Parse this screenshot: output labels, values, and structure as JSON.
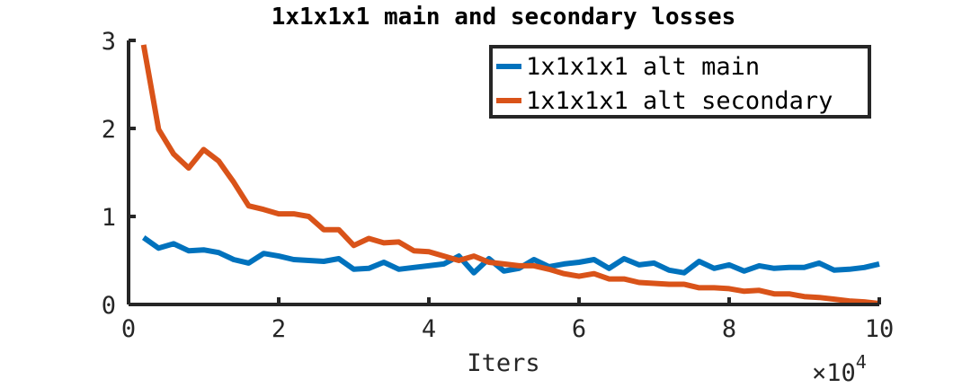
{
  "chart_data": {
    "type": "line",
    "title": "1x1x1x1 main and secondary losses",
    "xlabel": "Iters",
    "ylabel": "",
    "x_exponent_label": "×10",
    "x_exponent_power": "4",
    "xlim": [
      0,
      10
    ],
    "ylim": [
      0,
      3
    ],
    "xticks": [
      0,
      2,
      4,
      6,
      8,
      10
    ],
    "xtick_labels": [
      "0",
      "2",
      "4",
      "6",
      "8",
      "10"
    ],
    "yticks": [
      0,
      1,
      2,
      3
    ],
    "ytick_labels": [
      "0",
      "1",
      "2",
      "3"
    ],
    "grid": false,
    "legend_position": "top-right",
    "x": [
      0.2,
      0.4,
      0.6,
      0.8,
      1.0,
      1.2,
      1.4,
      1.6,
      1.8,
      2.0,
      2.2,
      2.4,
      2.6,
      2.8,
      3.0,
      3.2,
      3.4,
      3.6,
      3.8,
      4.0,
      4.2,
      4.4,
      4.6,
      4.8,
      5.0,
      5.2,
      5.4,
      5.6,
      5.8,
      6.0,
      6.2,
      6.4,
      6.6,
      6.8,
      7.0,
      7.2,
      7.4,
      7.6,
      7.8,
      8.0,
      8.2,
      8.4,
      8.6,
      8.8,
      9.0,
      9.2,
      9.4,
      9.6,
      9.8,
      10.0
    ],
    "series": [
      {
        "name": "1x1x1x1 alt main",
        "color": "#0072BD",
        "values": [
          0.76,
          0.64,
          0.69,
          0.61,
          0.62,
          0.59,
          0.51,
          0.47,
          0.58,
          0.55,
          0.51,
          0.5,
          0.49,
          0.52,
          0.4,
          0.41,
          0.48,
          0.4,
          0.42,
          0.44,
          0.46,
          0.55,
          0.36,
          0.52,
          0.38,
          0.41,
          0.51,
          0.43,
          0.46,
          0.48,
          0.51,
          0.41,
          0.52,
          0.45,
          0.47,
          0.39,
          0.36,
          0.49,
          0.41,
          0.45,
          0.38,
          0.44,
          0.41,
          0.42,
          0.42,
          0.47,
          0.39,
          0.4,
          0.42,
          0.46
        ]
      },
      {
        "name": "1x1x1x1 alt secondary",
        "color": "#D95319",
        "values": [
          2.95,
          1.99,
          1.71,
          1.55,
          1.76,
          1.63,
          1.39,
          1.12,
          1.08,
          1.03,
          1.03,
          1.0,
          0.85,
          0.85,
          0.67,
          0.75,
          0.7,
          0.71,
          0.61,
          0.6,
          0.55,
          0.5,
          0.55,
          0.48,
          0.46,
          0.44,
          0.44,
          0.4,
          0.35,
          0.32,
          0.35,
          0.29,
          0.29,
          0.25,
          0.24,
          0.23,
          0.23,
          0.19,
          0.19,
          0.18,
          0.15,
          0.16,
          0.12,
          0.12,
          0.09,
          0.08,
          0.06,
          0.04,
          0.03,
          0.01
        ]
      }
    ]
  }
}
